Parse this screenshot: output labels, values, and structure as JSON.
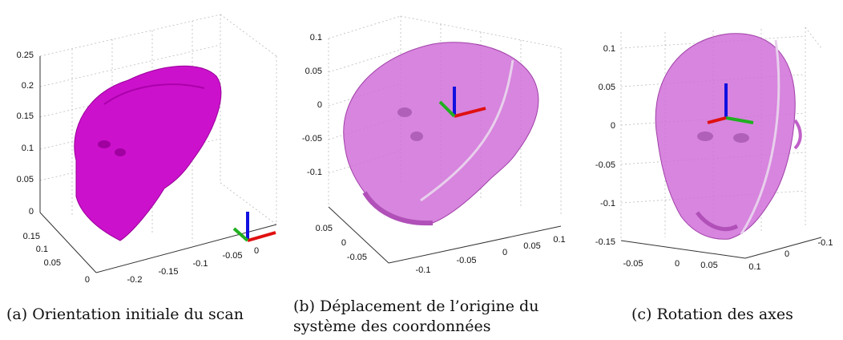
{
  "figure": {
    "panels": [
      {
        "caption": "(a) Orientation initiale du scan",
        "z_ticks": [
          "0.25",
          "0.2",
          "0.15",
          "0.1",
          "0.05",
          "0"
        ],
        "y_ticks": [
          "0.15",
          "0.1",
          "0.05",
          "0"
        ],
        "x_ticks": [
          "-0.2",
          "-0.15",
          "-0.1",
          "-0.05",
          "0"
        ]
      },
      {
        "caption_line1": "(b) Déplacement de l’origine du",
        "caption_line2": "système des coordonnées",
        "z_ticks": [
          "0.1",
          "0.05",
          "0",
          "-0.05",
          "-0.1"
        ],
        "y_ticks": [
          "0.05",
          "0",
          "-0.05"
        ],
        "x_ticks": [
          "-0.1",
          "-0.05",
          "0",
          "0.05",
          "0.1"
        ]
      },
      {
        "caption": "(c) Rotation des axes",
        "z_ticks": [
          "0.1",
          "0.05",
          "0",
          "-0.05",
          "-0.1",
          "-0.15"
        ],
        "y_ticks": [
          "-0.05",
          "0",
          "0.05"
        ],
        "x_ticks": [
          "0.1",
          "0",
          "-0.1"
        ]
      }
    ],
    "colors": {
      "head_solid": "#cc11cc",
      "head_translucent": "#d070d8",
      "axis_x": "#e01010",
      "axis_y": "#20b020",
      "axis_z": "#1010e0"
    }
  }
}
